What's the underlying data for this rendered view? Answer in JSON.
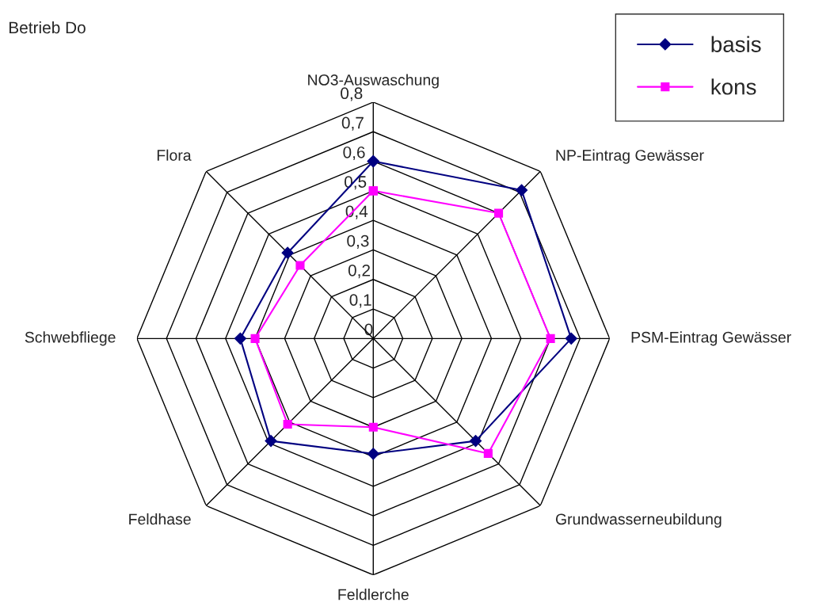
{
  "chart_data": {
    "type": "radar",
    "title": "Betrieb Do",
    "categories": [
      "NO3-Auswaschung",
      "NP-Eintrag Gewässer",
      "PSM-Eintrag Gewässer",
      "Grundwasserneubildung",
      "Feldlerche",
      "Feldhase",
      "Schwebfliege",
      "Flora"
    ],
    "series": [
      {
        "name": "basis",
        "color": "#000080",
        "marker": "diamond",
        "values": [
          0.6,
          0.71,
          0.67,
          0.49,
          0.39,
          0.49,
          0.45,
          0.41
        ]
      },
      {
        "name": "kons",
        "color": "#ff00ff",
        "marker": "square",
        "values": [
          0.5,
          0.6,
          0.6,
          0.55,
          0.3,
          0.41,
          0.4,
          0.35
        ]
      }
    ],
    "ylim": [
      0,
      0.8
    ],
    "yticks": [
      {
        "value": 0,
        "label": "0"
      },
      {
        "value": 0.1,
        "label": "0,1"
      },
      {
        "value": 0.2,
        "label": "0,2"
      },
      {
        "value": 0.3,
        "label": "0,3"
      },
      {
        "value": 0.4,
        "label": "0,4"
      },
      {
        "value": 0.5,
        "label": "0,5"
      },
      {
        "value": 0.6,
        "label": "0,6"
      },
      {
        "value": 0.7,
        "label": "0,7"
      },
      {
        "value": 0.8,
        "label": "0,8"
      }
    ],
    "grid": true,
    "legend": "top right"
  }
}
